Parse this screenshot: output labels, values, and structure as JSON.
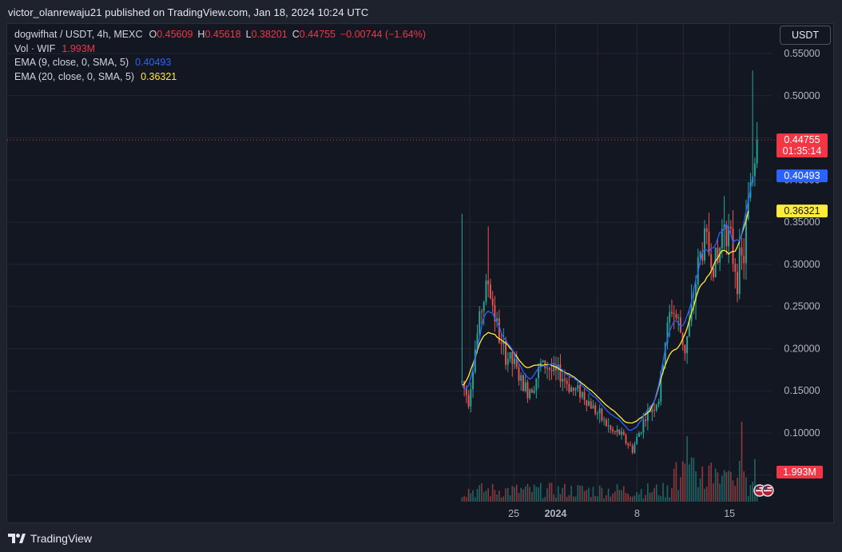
{
  "header": {
    "publisher_line": "victor_olanrewaju21 published on TradingView.com, Jan 18, 2024 10:24 UTC"
  },
  "legend": {
    "symbol": "dogwifhat / USDT, 4h, MEXC",
    "o_label": "O",
    "o_value": "0.45609",
    "h_label": "H",
    "h_value": "0.45618",
    "l_label": "L",
    "l_value": "0.38201",
    "c_label": "C",
    "c_value": "0.44755",
    "change": "−0.00744 (−1.64%)",
    "vol_label": "Vol · WIF",
    "vol_value": "1.993M",
    "ema9_label": "EMA (9, close, 0, SMA, 5)",
    "ema9_value": "0.40493",
    "ema20_label": "EMA (20, close, 0, SMA, 5)",
    "ema20_value": "0.36321"
  },
  "currency_button": "USDT",
  "footer": {
    "brand": "TradingView"
  },
  "colors": {
    "up": "#26a69a",
    "down": "#ef5350",
    "ema9": "#2962ff",
    "ema20": "#ffeb3b",
    "price_label": "#f23645",
    "grid": "#232632"
  },
  "chart_data": {
    "type": "candlestick",
    "symbol": "dogwifhat / USDT",
    "interval": "4h",
    "exchange": "MEXC",
    "x_ticks": [
      {
        "label": "25",
        "t": 24
      },
      {
        "label": "2024",
        "t": 43
      },
      {
        "label": "8",
        "t": 80
      },
      {
        "label": "15",
        "t": 122
      }
    ],
    "y_ticks": [
      "0.55000",
      "0.50000",
      "0.45000",
      "0.40000",
      "0.35000",
      "0.30000",
      "0.25000",
      "0.20000",
      "0.15000",
      "0.10000"
    ],
    "y_range": [
      0.07,
      0.57
    ],
    "price_labels": [
      {
        "text": "0.44755",
        "sub": "01:35:14",
        "value": 0.44755,
        "color": "#f23645"
      },
      {
        "text": "0.40493",
        "value": 0.40493,
        "color": "#2962ff"
      },
      {
        "text": "0.36321",
        "value": 0.36321,
        "color": "#ffeb3b"
      }
    ],
    "volume_label": {
      "text": "1.993M",
      "color": "#f23645"
    },
    "last_price": 0.44755,
    "ema9_last": 0.40493,
    "ema20_last": 0.36321,
    "close_path": [
      {
        "t": 0,
        "c": 0.16
      },
      {
        "t": 3,
        "c": 0.14
      },
      {
        "t": 6,
        "c": 0.2
      },
      {
        "t": 9,
        "c": 0.25
      },
      {
        "t": 12,
        "c": 0.28
      },
      {
        "t": 15,
        "c": 0.24
      },
      {
        "t": 18,
        "c": 0.2
      },
      {
        "t": 21,
        "c": 0.19
      },
      {
        "t": 24,
        "c": 0.18
      },
      {
        "t": 27,
        "c": 0.16
      },
      {
        "t": 30,
        "c": 0.15
      },
      {
        "t": 33,
        "c": 0.16
      },
      {
        "t": 36,
        "c": 0.18
      },
      {
        "t": 39,
        "c": 0.18
      },
      {
        "t": 42,
        "c": 0.17
      },
      {
        "t": 45,
        "c": 0.17
      },
      {
        "t": 48,
        "c": 0.16
      },
      {
        "t": 51,
        "c": 0.15
      },
      {
        "t": 54,
        "c": 0.15
      },
      {
        "t": 57,
        "c": 0.14
      },
      {
        "t": 60,
        "c": 0.13
      },
      {
        "t": 63,
        "c": 0.12
      },
      {
        "t": 66,
        "c": 0.11
      },
      {
        "t": 69,
        "c": 0.1
      },
      {
        "t": 72,
        "c": 0.1
      },
      {
        "t": 75,
        "c": 0.09
      },
      {
        "t": 78,
        "c": 0.08
      },
      {
        "t": 81,
        "c": 0.1
      },
      {
        "t": 84,
        "c": 0.12
      },
      {
        "t": 87,
        "c": 0.13
      },
      {
        "t": 90,
        "c": 0.14
      },
      {
        "t": 93,
        "c": 0.21
      },
      {
        "t": 96,
        "c": 0.25
      },
      {
        "t": 99,
        "c": 0.23
      },
      {
        "t": 102,
        "c": 0.2
      },
      {
        "t": 105,
        "c": 0.24
      },
      {
        "t": 108,
        "c": 0.3
      },
      {
        "t": 111,
        "c": 0.33
      },
      {
        "t": 114,
        "c": 0.31
      },
      {
        "t": 117,
        "c": 0.3
      },
      {
        "t": 120,
        "c": 0.36
      },
      {
        "t": 123,
        "c": 0.32
      },
      {
        "t": 126,
        "c": 0.29
      },
      {
        "t": 129,
        "c": 0.31
      },
      {
        "t": 132,
        "c": 0.4
      },
      {
        "t": 135,
        "c": 0.45
      }
    ]
  }
}
